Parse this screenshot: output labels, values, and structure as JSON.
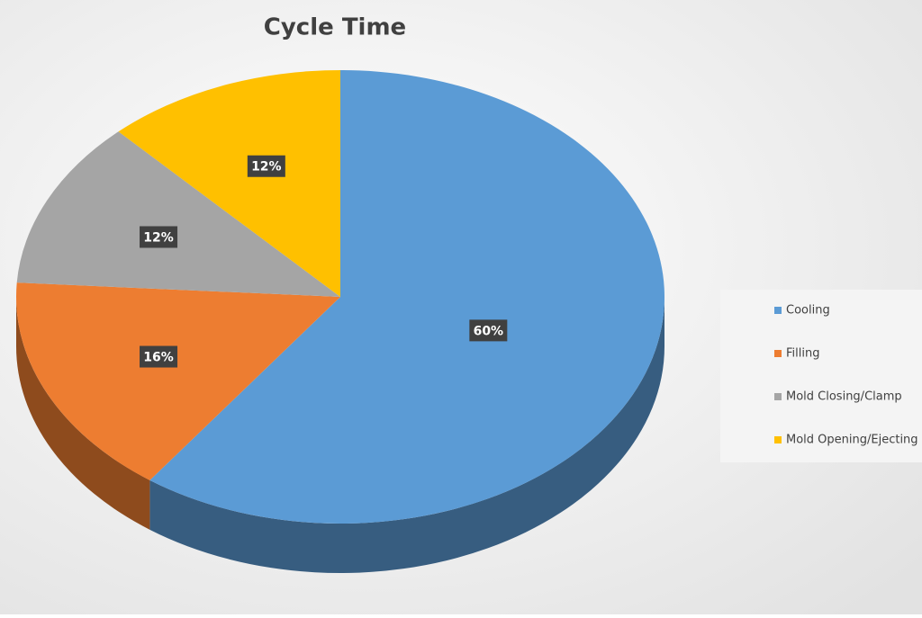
{
  "chart_data": {
    "type": "pie",
    "title": "Cycle Time",
    "categories": [
      "Cooling",
      "Filling",
      "Mold Closing/Clamp",
      "Mold Opening/Ejecting"
    ],
    "values": [
      60,
      16,
      12,
      12
    ],
    "value_labels": [
      "60%",
      "16%",
      "12%",
      "12%"
    ],
    "colors": [
      "#5b9bd5",
      "#ed7d31",
      "#a5a5a5",
      "#ffc000"
    ],
    "legend": "right"
  }
}
